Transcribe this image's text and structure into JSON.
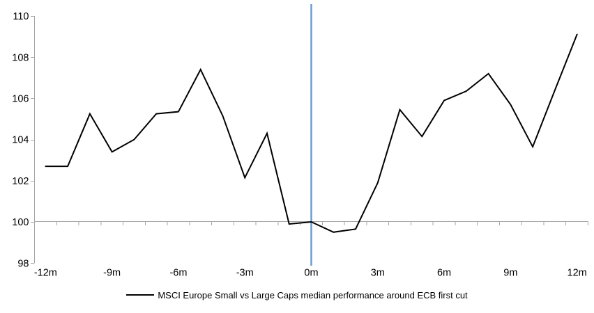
{
  "chart_data": {
    "type": "line",
    "title": "",
    "x_months": [
      -12,
      -11,
      -10,
      -9,
      -8,
      -7,
      -6,
      -5,
      -4,
      -3,
      -2,
      -1,
      0,
      1,
      2,
      3,
      4,
      5,
      6,
      7,
      8,
      9,
      10,
      11,
      12
    ],
    "x_tick_months": [
      -12,
      -9,
      -6,
      -3,
      0,
      3,
      6,
      9,
      12
    ],
    "x_tick_labels": [
      "-12m",
      "-9m",
      "-6m",
      "-3m",
      "0m",
      "3m",
      "6m",
      "9m",
      "12m"
    ],
    "y_ticks": [
      98,
      100,
      102,
      104,
      106,
      108,
      110
    ],
    "y_tick_labels": [
      "98",
      "100",
      "102",
      "104",
      "106",
      "108",
      "110"
    ],
    "ylim": [
      98,
      110
    ],
    "baseline_value": 100,
    "event_line_month": 0,
    "grid": "none",
    "legend_position": "bottom-center",
    "series": [
      {
        "name": "MSCI Europe Small vs Large Caps median performance around ECB first cut",
        "color": "#000000",
        "values": [
          102.7,
          102.7,
          105.25,
          103.4,
          104.0,
          105.25,
          105.35,
          107.4,
          105.15,
          102.15,
          104.3,
          99.9,
          100.0,
          99.5,
          99.65,
          101.9,
          105.45,
          104.15,
          105.9,
          106.35,
          107.2,
          105.7,
          103.65,
          106.4,
          109.1
        ]
      }
    ],
    "colors": {
      "event_line": "#6C9DD3",
      "axis": "#A6A6A6",
      "background": "#FFFFFF"
    }
  }
}
